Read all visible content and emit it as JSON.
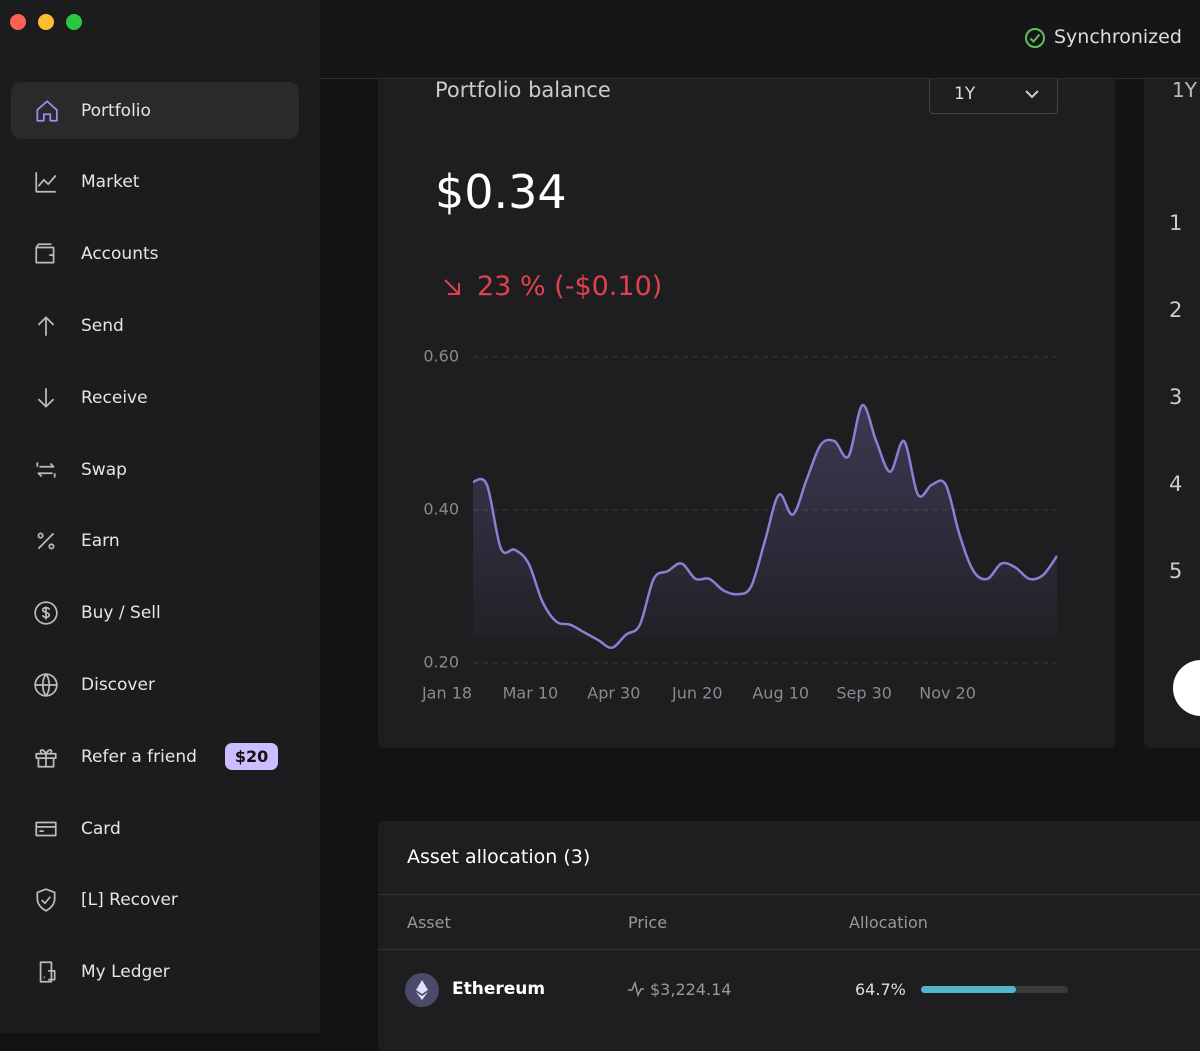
{
  "status": "Synchronized",
  "sidebar": {
    "items": [
      {
        "label": "Portfolio"
      },
      {
        "label": "Market"
      },
      {
        "label": "Accounts"
      },
      {
        "label": "Send"
      },
      {
        "label": "Receive"
      },
      {
        "label": "Swap"
      },
      {
        "label": "Earn"
      },
      {
        "label": "Buy / Sell"
      },
      {
        "label": "Discover"
      },
      {
        "label": "Refer a friend",
        "badge": "$20"
      },
      {
        "label": "Card"
      },
      {
        "label": "[L] Recover"
      },
      {
        "label": "My Ledger"
      }
    ]
  },
  "balance_card": {
    "title": "Portfolio balance",
    "range": "1Y",
    "balance": "$0.34",
    "change": "23 % (-$0.10)"
  },
  "chart_data": {
    "type": "line",
    "color": "#8b7fd4",
    "grid": true,
    "categories": [
      "Jan 18",
      null,
      null,
      null,
      null,
      null,
      "Mar 10",
      null,
      null,
      null,
      null,
      null,
      "Apr 30",
      null,
      null,
      null,
      null,
      null,
      "Jun 20",
      null,
      null,
      null,
      null,
      null,
      "Aug 10",
      null,
      null,
      null,
      null,
      null,
      "Sep 30",
      null,
      null,
      null,
      null,
      null,
      "Nov 20",
      null,
      null,
      null,
      null,
      null,
      null
    ],
    "values": [
      0.437,
      0.433,
      0.35,
      0.348,
      0.33,
      0.28,
      0.254,
      0.25,
      0.24,
      0.23,
      0.22,
      0.237,
      0.25,
      0.31,
      0.32,
      0.33,
      0.31,
      0.31,
      0.295,
      0.29,
      0.3,
      0.36,
      0.42,
      0.394,
      0.44,
      0.485,
      0.49,
      0.47,
      0.537,
      0.49,
      0.45,
      0.49,
      0.42,
      0.433,
      0.433,
      0.367,
      0.32,
      0.31,
      0.33,
      0.325,
      0.31,
      0.315,
      0.34
    ],
    "ylim": [
      0.2,
      0.6
    ],
    "yticks": [
      {
        "value": 0.2,
        "label": "0.20"
      },
      {
        "value": 0.4,
        "label": "0.40"
      },
      {
        "value": 0.6,
        "label": "0.60"
      }
    ]
  },
  "right_panel": {
    "range": "1Y",
    "ranks": [
      "1",
      "2",
      "3",
      "4",
      "5"
    ]
  },
  "allocation": {
    "title": "Asset allocation (3)",
    "columns": [
      "Asset",
      "Price",
      "Allocation"
    ],
    "rows": [
      {
        "asset": "Ethereum",
        "price": "$3,224.14",
        "value": 64.7,
        "value_label": "64.7%"
      }
    ]
  }
}
